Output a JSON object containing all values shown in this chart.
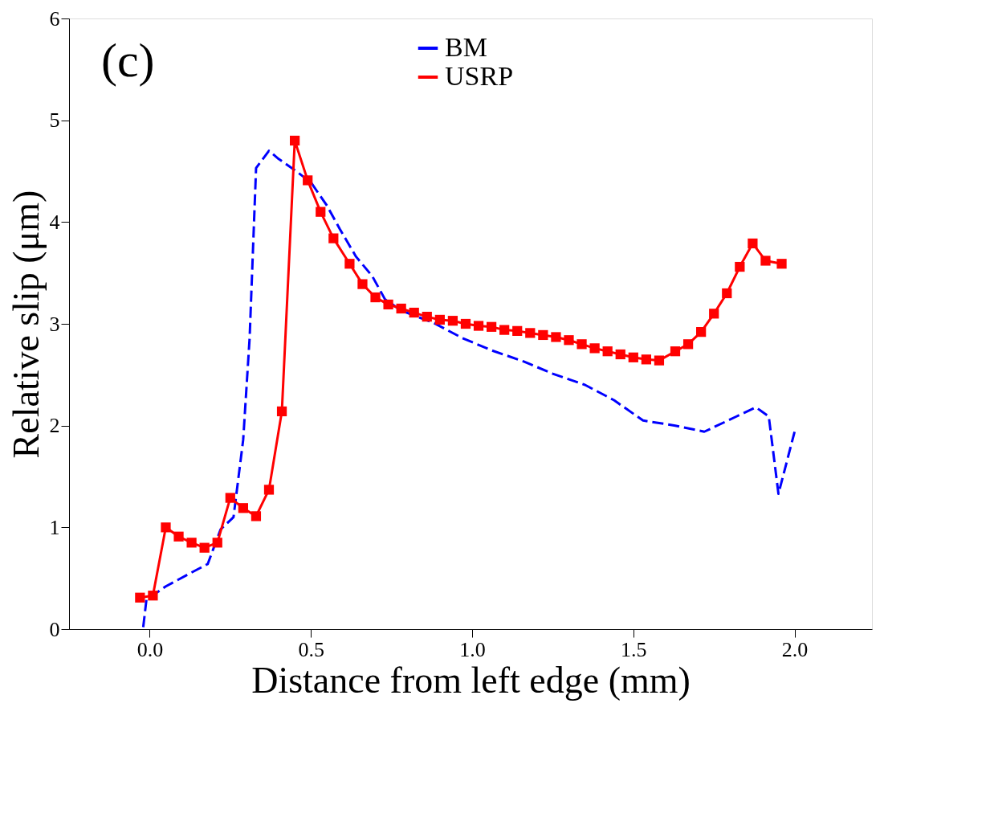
{
  "chart_data": {
    "type": "line",
    "xlabel": "Distance from left edge (mm)",
    "ylabel": "Relative slip (μm)",
    "annotations": [
      "(c)"
    ],
    "xlim": [
      -0.25,
      2.24
    ],
    "ylim": [
      0,
      6
    ],
    "xticks": [
      {
        "value": 0,
        "label": "0.0"
      },
      {
        "value": 0.5,
        "label": "0.5"
      },
      {
        "value": 1,
        "label": "1.0"
      },
      {
        "value": 1.5,
        "label": "1.5"
      },
      {
        "value": 2,
        "label": "2.0"
      }
    ],
    "yticks": [
      0,
      1,
      2,
      3,
      4,
      5,
      6
    ],
    "grid": false,
    "legend": "top",
    "series": [
      {
        "name": "BM",
        "color": "#0000ff",
        "marker": "none",
        "line_style": "dashed",
        "x": [
          -0.02,
          -0.01,
          0.05,
          0.12,
          0.18,
          0.22,
          0.26,
          0.29,
          0.31,
          0.33,
          0.37,
          0.4,
          0.45,
          0.5,
          0.55,
          0.59,
          0.64,
          0.69,
          0.73,
          0.78,
          0.88,
          0.97,
          1.06,
          1.16,
          1.25,
          1.35,
          1.44,
          1.53,
          1.63,
          1.72,
          1.82,
          1.88,
          1.92,
          1.95,
          2.0
        ],
        "values": [
          0.02,
          0.29,
          0.42,
          0.54,
          0.64,
          0.98,
          1.1,
          1.86,
          2.86,
          4.53,
          4.7,
          4.62,
          4.51,
          4.39,
          4.16,
          3.93,
          3.66,
          3.47,
          3.24,
          3.13,
          3.01,
          2.86,
          2.74,
          2.63,
          2.51,
          2.4,
          2.25,
          2.05,
          2.0,
          1.94,
          2.09,
          2.18,
          2.09,
          1.33,
          1.94
        ]
      },
      {
        "name": "USRP",
        "color": "#ff0000",
        "marker": "square",
        "line_style": "solid",
        "x": [
          -0.03,
          0.01,
          0.05,
          0.09,
          0.13,
          0.17,
          0.21,
          0.25,
          0.29,
          0.33,
          0.37,
          0.41,
          0.45,
          0.49,
          0.53,
          0.57,
          0.62,
          0.66,
          0.7,
          0.74,
          0.78,
          0.82,
          0.86,
          0.9,
          0.94,
          0.98,
          1.02,
          1.06,
          1.1,
          1.14,
          1.18,
          1.22,
          1.26,
          1.3,
          1.34,
          1.38,
          1.42,
          1.46,
          1.5,
          1.54,
          1.58,
          1.63,
          1.67,
          1.71,
          1.75,
          1.79,
          1.83,
          1.87,
          1.91,
          1.96
        ],
        "values": [
          0.31,
          0.33,
          1.0,
          0.91,
          0.85,
          0.8,
          0.85,
          1.29,
          1.19,
          1.11,
          1.37,
          2.14,
          4.8,
          4.41,
          4.1,
          3.84,
          3.59,
          3.39,
          3.26,
          3.19,
          3.15,
          3.11,
          3.07,
          3.04,
          3.03,
          3.0,
          2.98,
          2.97,
          2.94,
          2.93,
          2.91,
          2.89,
          2.87,
          2.84,
          2.8,
          2.76,
          2.73,
          2.7,
          2.67,
          2.65,
          2.64,
          2.73,
          2.8,
          2.92,
          3.1,
          3.3,
          3.56,
          3.79,
          3.62,
          3.59
        ]
      }
    ]
  }
}
